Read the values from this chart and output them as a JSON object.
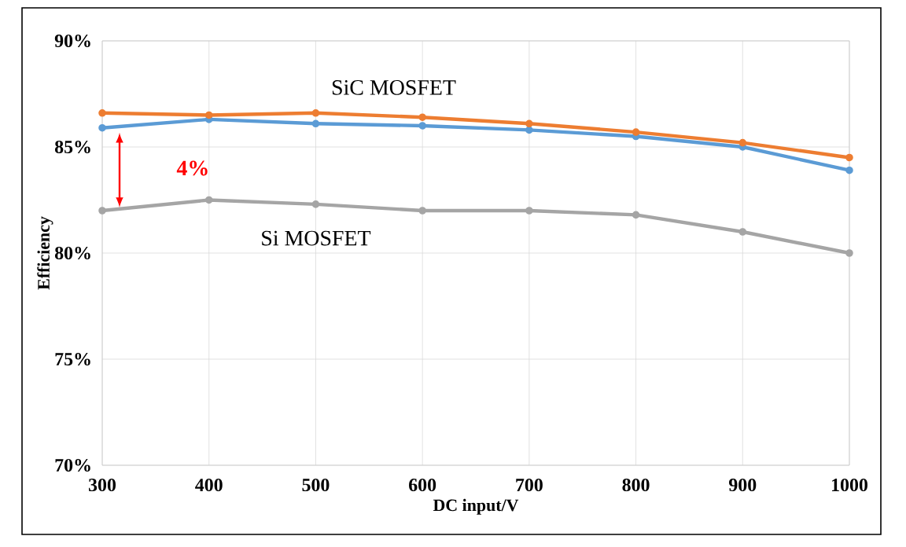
{
  "chart_data": {
    "type": "line",
    "xlabel": "DC input/V",
    "ylabel": "Efficiency",
    "x": [
      300,
      400,
      500,
      600,
      700,
      800,
      900,
      1000
    ],
    "series": [
      {
        "color": "#5b9bd5",
        "values": [
          85.9,
          86.3,
          86.1,
          86.0,
          85.8,
          85.5,
          85.0,
          83.9
        ]
      },
      {
        "color": "#ed7d31",
        "values": [
          86.6,
          86.5,
          86.6,
          86.4,
          86.1,
          85.7,
          85.2,
          84.5
        ]
      },
      {
        "color": "#a5a5a5",
        "values": [
          82.0,
          82.5,
          82.3,
          82.0,
          82.0,
          81.8,
          81.0,
          80.0
        ]
      }
    ],
    "xlim": [
      300,
      1000
    ],
    "xticks": [
      300,
      400,
      500,
      600,
      700,
      800,
      900,
      1000
    ],
    "ylim": [
      70,
      90
    ],
    "yticks": [
      {
        "value": 70,
        "label": "70%"
      },
      {
        "value": 75,
        "label": "75%"
      },
      {
        "value": 80,
        "label": "80%"
      },
      {
        "value": 85,
        "label": "85%"
      },
      {
        "value": 90,
        "label": "90%"
      }
    ],
    "grid": true,
    "marker": "circle",
    "line_style": "solid",
    "annotations": [
      "SiC  MOSFET",
      "Si  MOSFET",
      "4%"
    ]
  }
}
